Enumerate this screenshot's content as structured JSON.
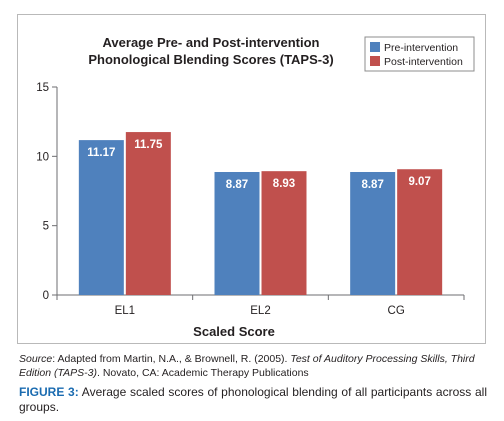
{
  "chart_data": {
    "type": "bar",
    "title_line1": "Average Pre- and Post-intervention",
    "title_line2": "Phonological Blending Scores (TAPS-3)",
    "xlabel": "Scaled Score",
    "ylabel": "",
    "categories": [
      "EL1",
      "EL2",
      "CG"
    ],
    "series": [
      {
        "name": "Pre-intervention",
        "values": [
          11.17,
          8.87,
          8.87
        ],
        "labels": [
          "11.17",
          "8.87",
          "8.87"
        ],
        "color": "#4f81bd"
      },
      {
        "name": "Post-intervention",
        "values": [
          11.75,
          8.93,
          9.07
        ],
        "labels": [
          "11.75",
          "8.93",
          "9.07"
        ],
        "color": "#c0504d"
      }
    ],
    "ylim": [
      0,
      15
    ],
    "yticks": [
      "0",
      "5",
      "10",
      "15"
    ],
    "grid": false,
    "legend_position": "top-right"
  },
  "source": {
    "label": "Source",
    "text1": ": Adapted from Martin, N.A., & Brownell, R. (2005). ",
    "title_italic": "Test of Auditory Processing Skills, Third Edition (TAPS-3)",
    "text2": ". Novato, CA: Academic Therapy Publications"
  },
  "caption": {
    "label": "FIGURE 3:",
    "text": " Average scaled scores of phonological blending of all participants across all groups."
  }
}
